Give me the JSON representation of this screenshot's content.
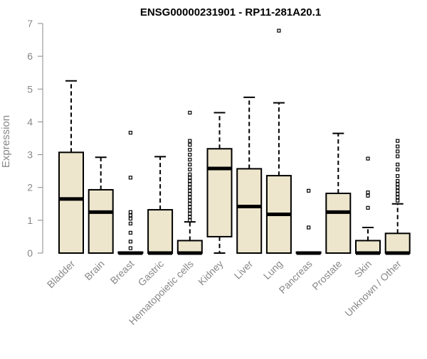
{
  "chart_data": {
    "type": "boxplot",
    "title": "ENSG00000231901 - RP11-281A20.1",
    "ylabel": "Expression",
    "ylim": [
      0,
      7
    ],
    "yticks": [
      0,
      1,
      2,
      3,
      4,
      5,
      6,
      7
    ],
    "grid": false,
    "colors": {
      "box_fill": "#ede6cc",
      "stroke": "#000000",
      "text": "#888888"
    },
    "categories": [
      "Bladder",
      "Brain",
      "Breast",
      "Gastric",
      "Hematopoietic cells",
      "Kidney",
      "Liver",
      "Lung",
      "Pancreas",
      "Prostate",
      "Skin",
      "Unknown / Other"
    ],
    "boxes": [
      {
        "min": 0,
        "q1": 0,
        "median": 1.65,
        "q3": 3.07,
        "max": 5.25,
        "outliers": []
      },
      {
        "min": 0,
        "q1": 0,
        "median": 1.25,
        "q3": 1.93,
        "max": 2.92,
        "outliers": []
      },
      {
        "min": 0,
        "q1": 0,
        "median": 0,
        "q3": 0.03,
        "max": 0.03,
        "outliers": [
          0.15,
          0.35,
          0.62,
          0.9,
          1.05,
          1.15,
          1.25,
          2.3,
          3.67
        ]
      },
      {
        "min": 0,
        "q1": 0,
        "median": 0,
        "q3": 1.32,
        "max": 2.94,
        "outliers": []
      },
      {
        "min": 0,
        "q1": 0,
        "median": 0,
        "q3": 0.38,
        "max": 0.95,
        "outliers": [
          1.0,
          1.1,
          1.2,
          1.3,
          1.4,
          1.5,
          1.6,
          1.7,
          1.8,
          1.9,
          2.0,
          2.1,
          2.2,
          2.3,
          2.4,
          2.55,
          2.7,
          2.85,
          3.0,
          3.15,
          3.3,
          3.42,
          4.28
        ]
      },
      {
        "min": 0,
        "q1": 0.5,
        "median": 2.58,
        "q3": 3.18,
        "max": 4.28,
        "outliers": []
      },
      {
        "min": 0,
        "q1": 0,
        "median": 1.42,
        "q3": 2.57,
        "max": 4.75,
        "outliers": []
      },
      {
        "min": 0,
        "q1": 0,
        "median": 1.18,
        "q3": 2.36,
        "max": 4.58,
        "outliers": [
          6.78
        ]
      },
      {
        "min": 0,
        "q1": 0,
        "median": 0,
        "q3": 0.03,
        "max": 0.03,
        "outliers": [
          0.78,
          1.9
        ]
      },
      {
        "min": 0,
        "q1": 0,
        "median": 1.25,
        "q3": 1.82,
        "max": 3.65,
        "outliers": []
      },
      {
        "min": 0,
        "q1": 0,
        "median": 0,
        "q3": 0.38,
        "max": 0.78,
        "outliers": [
          1.38,
          1.75,
          1.85,
          2.88
        ]
      },
      {
        "min": 0,
        "q1": 0,
        "median": 0,
        "q3": 0.6,
        "max": 1.5,
        "outliers": [
          1.6,
          1.7,
          1.8,
          1.9,
          2.0,
          2.1,
          2.2,
          2.35,
          2.55,
          2.7,
          2.95,
          3.1,
          3.25,
          3.42
        ]
      }
    ]
  }
}
